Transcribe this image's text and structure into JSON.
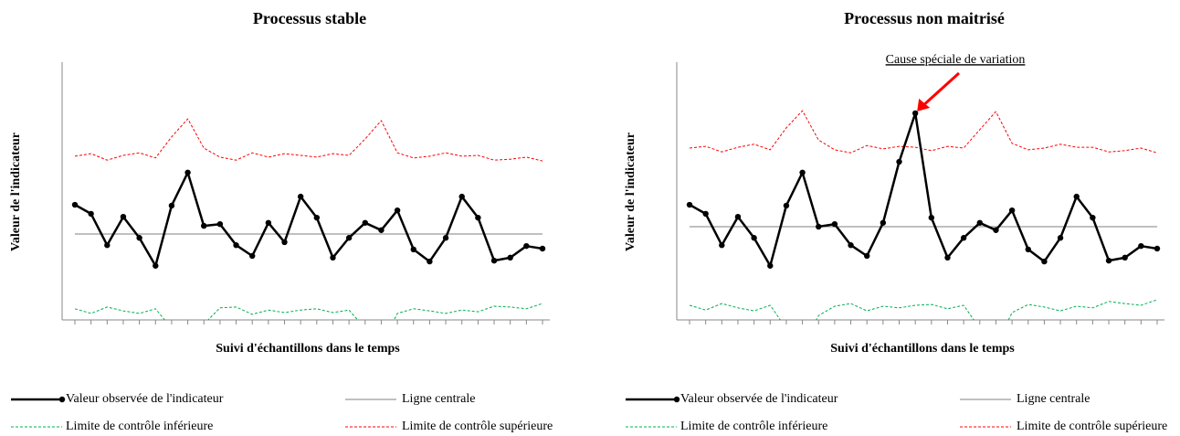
{
  "chart_data": [
    {
      "type": "line",
      "title": "Processus stable",
      "x_label": "Suivi d'échantillons dans le temps",
      "y_label": "Valeur de l'indicateur",
      "categories": [
        null,
        null,
        null,
        null,
        null,
        null,
        null,
        null,
        null,
        null,
        null,
        null,
        null,
        null,
        null,
        null,
        null,
        null,
        null,
        null,
        null,
        null,
        null,
        null,
        null,
        null,
        null,
        null,
        null,
        null
      ],
      "ylim": [
        0,
        6
      ],
      "legend": "bottom",
      "series": [
        {
          "name": "Valeur observée de l'indicateur",
          "color": "#000000",
          "style": "solid-markers",
          "values": [
            2.68,
            2.47,
            1.74,
            2.4,
            1.91,
            1.26,
            2.66,
            3.43,
            2.19,
            2.23,
            1.74,
            1.49,
            2.26,
            1.81,
            2.87,
            2.38,
            1.45,
            1.91,
            2.26,
            2.09,
            2.55,
            1.64,
            1.36,
            1.91,
            2.87,
            2.38,
            1.38,
            1.45,
            1.72,
            1.66
          ]
        },
        {
          "name": "Ligne centrale",
          "color": "#808080",
          "style": "thin",
          "values": [
            2,
            2,
            2,
            2,
            2,
            2,
            2,
            2,
            2,
            2,
            2,
            2,
            2,
            2,
            2,
            2,
            2,
            2,
            2,
            2,
            2,
            2,
            2,
            2,
            2,
            2,
            2,
            2,
            2,
            2
          ]
        },
        {
          "name": "Limite de contrôle inférieure",
          "color": "#00b050",
          "style": "dashed",
          "values": [
            0.26,
            0.15,
            0.3,
            0.21,
            0.15,
            0.26,
            -0.2,
            -0.6,
            -0.1,
            0.28,
            0.3,
            0.13,
            0.23,
            0.17,
            0.23,
            0.26,
            0.17,
            0.23,
            -0.2,
            -0.6,
            0.15,
            0.26,
            0.21,
            0.15,
            0.23,
            0.19,
            0.32,
            0.3,
            0.26,
            0.38
          ]
        },
        {
          "name": "Limite de contrôle supérieure",
          "color": "#ff0000",
          "style": "dashed",
          "values": [
            3.81,
            3.87,
            3.72,
            3.83,
            3.89,
            3.77,
            4.26,
            4.68,
            4.0,
            3.79,
            3.72,
            3.89,
            3.79,
            3.87,
            3.83,
            3.79,
            3.87,
            3.83,
            4.21,
            4.64,
            3.89,
            3.77,
            3.81,
            3.89,
            3.81,
            3.83,
            3.72,
            3.74,
            3.79,
            3.7
          ]
        }
      ]
    },
    {
      "type": "line",
      "title": "Processus non maitrisé",
      "x_label": "Suivi d'échantillons dans le temps",
      "y_label": "Valeur de l'indicateur",
      "categories": [
        null,
        null,
        null,
        null,
        null,
        null,
        null,
        null,
        null,
        null,
        null,
        null,
        null,
        null,
        null,
        null,
        null,
        null,
        null,
        null,
        null,
        null,
        null,
        null,
        null,
        null,
        null,
        null,
        null,
        null
      ],
      "ylim": [
        0,
        6
      ],
      "legend": "bottom",
      "annotation": {
        "text": "Cause spéciale de variation",
        "color": "#ff0000",
        "point": 14
      },
      "series": [
        {
          "name": "Valeur observée de l'indicateur",
          "color": "#000000",
          "style": "solid-markers",
          "values": [
            2.68,
            2.47,
            1.74,
            2.4,
            1.91,
            1.26,
            2.66,
            3.43,
            2.17,
            2.23,
            1.74,
            1.49,
            2.26,
            3.68,
            4.81,
            2.38,
            1.45,
            1.91,
            2.26,
            2.09,
            2.55,
            1.64,
            1.36,
            1.91,
            2.87,
            2.38,
            1.38,
            1.45,
            1.72,
            1.66
          ]
        },
        {
          "name": "Ligne centrale",
          "color": "#808080",
          "style": "thin",
          "values": [
            2.17,
            2.17,
            2.17,
            2.17,
            2.17,
            2.17,
            2.17,
            2.17,
            2.17,
            2.17,
            2.17,
            2.17,
            2.17,
            2.17,
            2.17,
            2.17,
            2.17,
            2.17,
            2.17,
            2.17,
            2.17,
            2.17,
            2.17,
            2.17,
            2.17,
            2.17,
            2.17,
            2.17,
            2.17,
            2.17
          ]
        },
        {
          "name": "Limite de contrôle inférieure",
          "color": "#00b050",
          "style": "dashed",
          "values": [
            0.34,
            0.23,
            0.38,
            0.28,
            0.21,
            0.34,
            -0.2,
            -0.6,
            0.1,
            0.32,
            0.38,
            0.21,
            0.32,
            0.28,
            0.34,
            0.36,
            0.26,
            0.34,
            -0.2,
            -0.6,
            0.17,
            0.36,
            0.3,
            0.21,
            0.32,
            0.28,
            0.43,
            0.38,
            0.34,
            0.47
          ]
        },
        {
          "name": "Limite de contrôle supérieure",
          "color": "#ff0000",
          "style": "dashed",
          "values": [
            4.0,
            4.04,
            3.91,
            4.02,
            4.09,
            3.96,
            4.47,
            4.87,
            4.19,
            3.96,
            3.89,
            4.06,
            3.98,
            4.04,
            4.02,
            3.94,
            4.04,
            4.0,
            4.43,
            4.85,
            4.11,
            3.96,
            4.0,
            4.09,
            4.02,
            4.02,
            3.91,
            3.94,
            4.0,
            3.89
          ]
        }
      ]
    }
  ]
}
